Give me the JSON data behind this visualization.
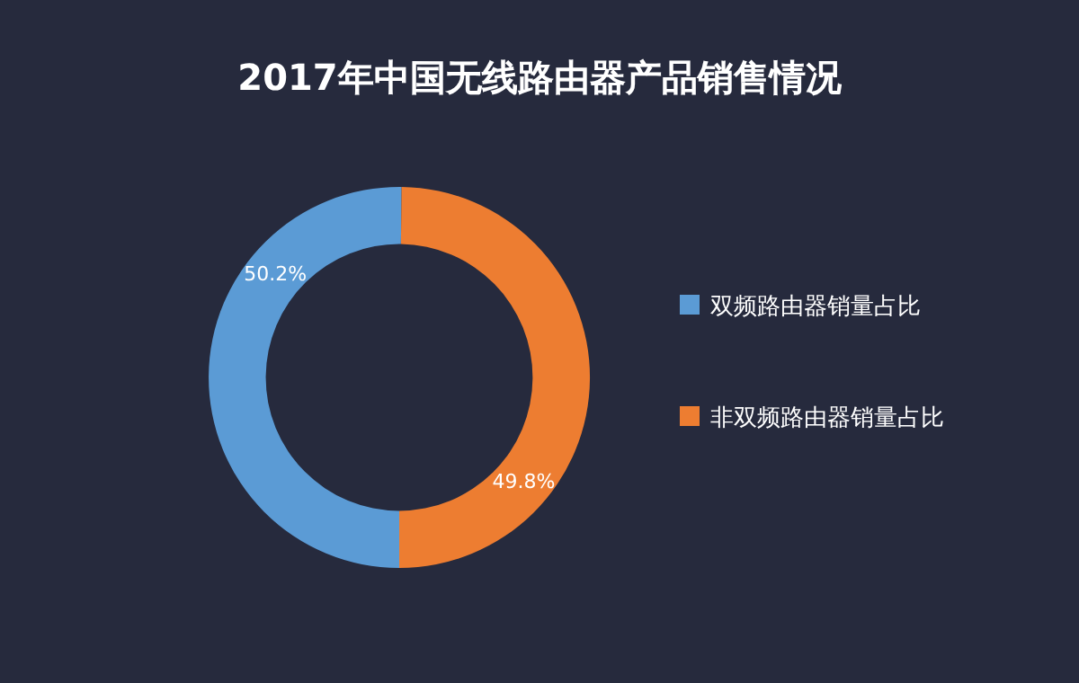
{
  "chart_data": {
    "type": "donut",
    "title": "2017年中国无线路由器产品销售情况",
    "categories": [
      "双频路由器销量占比",
      "非双频路由器销量占比"
    ],
    "values": [
      50.2,
      49.8
    ],
    "colors": [
      "#5b9bd5",
      "#ed7d31"
    ],
    "value_labels": [
      "50.2%",
      "49.8%"
    ],
    "legend": "right"
  }
}
